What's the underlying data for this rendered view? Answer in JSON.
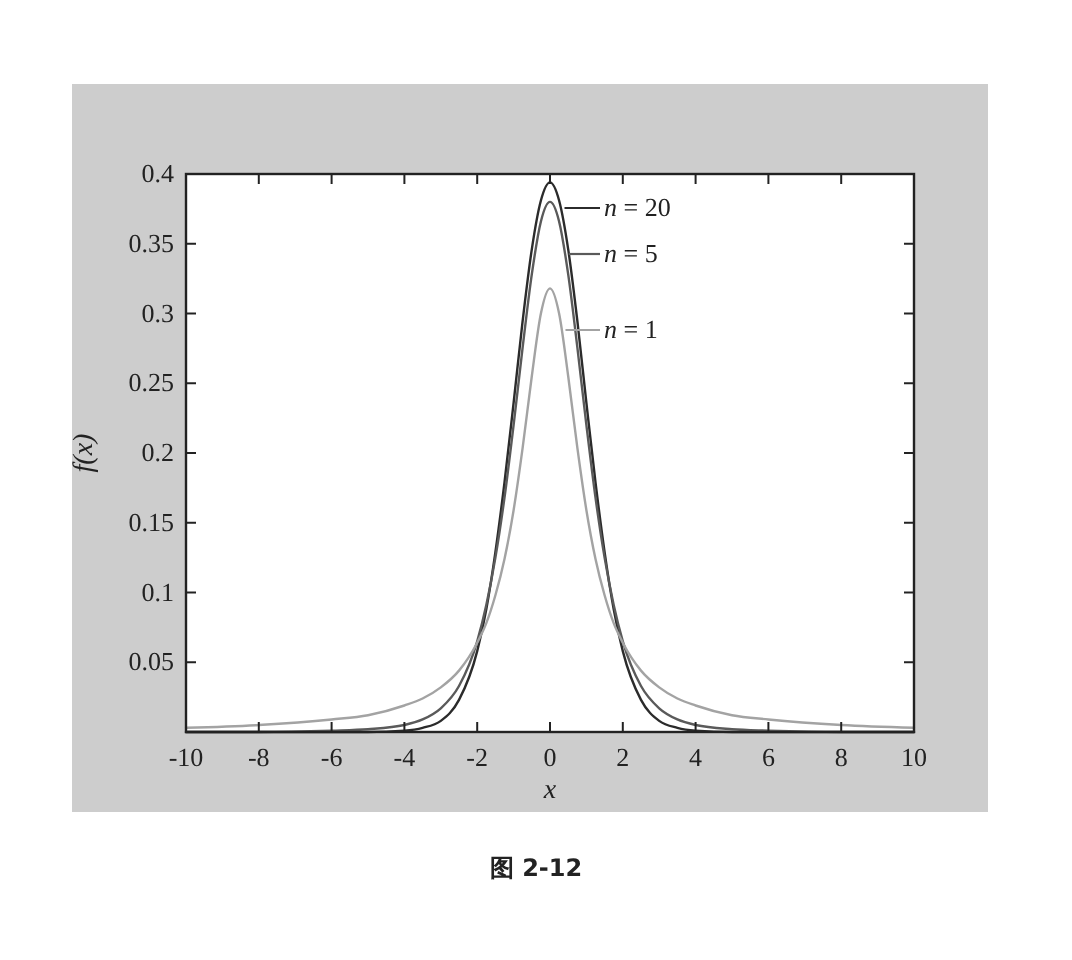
{
  "chart_data": {
    "type": "line",
    "x": [
      -10,
      -8,
      -6,
      -5,
      -4,
      -3.5,
      -3,
      -2.5,
      -2,
      -1.75,
      -1.5,
      -1.25,
      -1,
      -0.75,
      -0.5,
      -0.25,
      0,
      0.25,
      0.5,
      0.75,
      1,
      1.25,
      1.5,
      1.75,
      2,
      2.5,
      3,
      3.5,
      4,
      5,
      6,
      8,
      10
    ],
    "series": [
      {
        "name": "n = 20",
        "color": "#2b2b2b",
        "values": [
          0,
          0,
          0,
          0,
          0.001,
          0.003,
          0.008,
          0.023,
          0.058,
          0.088,
          0.129,
          0.179,
          0.236,
          0.295,
          0.346,
          0.381,
          0.394,
          0.381,
          0.346,
          0.295,
          0.236,
          0.179,
          0.129,
          0.088,
          0.058,
          0.023,
          0.008,
          0.003,
          0.001,
          0,
          0,
          0,
          0
        ]
      },
      {
        "name": "n = 5",
        "color": "#5a5a5a",
        "values": [
          0,
          0,
          0.001,
          0.002,
          0.005,
          0.009,
          0.017,
          0.033,
          0.065,
          0.091,
          0.125,
          0.168,
          0.22,
          0.276,
          0.328,
          0.366,
          0.38,
          0.366,
          0.328,
          0.276,
          0.22,
          0.168,
          0.125,
          0.091,
          0.065,
          0.033,
          0.017,
          0.009,
          0.005,
          0.002,
          0.001,
          0,
          0
        ]
      },
      {
        "name": "n = 1",
        "color": "#a3a3a3",
        "values": [
          0.003,
          0.005,
          0.009,
          0.012,
          0.019,
          0.024,
          0.032,
          0.044,
          0.064,
          0.078,
          0.098,
          0.124,
          0.159,
          0.204,
          0.255,
          0.3,
          0.318,
          0.3,
          0.255,
          0.204,
          0.159,
          0.124,
          0.098,
          0.078,
          0.064,
          0.044,
          0.032,
          0.024,
          0.019,
          0.012,
          0.009,
          0.005,
          0.003
        ]
      }
    ],
    "xlim": [
      -10,
      10
    ],
    "ylim": [
      0,
      0.4
    ],
    "xticks": [
      -10,
      -8,
      -6,
      -4,
      -2,
      0,
      2,
      4,
      6,
      8,
      10
    ],
    "yticks": [
      0.05,
      0.1,
      0.15,
      0.2,
      0.25,
      0.3,
      0.35,
      0.4
    ],
    "xlabel": "x",
    "ylabel": "f(x)",
    "legend": "top",
    "annotations": [
      "图 2-12"
    ]
  }
}
